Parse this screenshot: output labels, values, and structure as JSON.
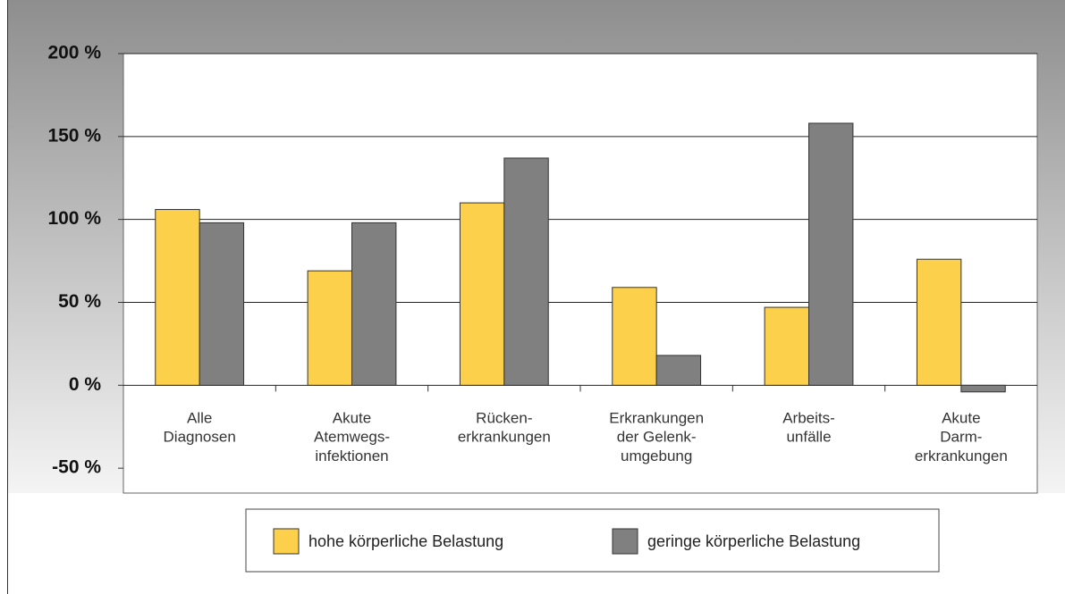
{
  "chart_data": {
    "type": "bar",
    "categories": [
      "Alle\nDiagnosen",
      "Akute\nAtemwegs-\ninfektionen",
      "Rücken-\nerkrankungen",
      "Erkrankungen\nder Gelenk-\numgebung",
      "Arbeits-\nunfälle",
      "Akute\nDarm-\nerkrankungen"
    ],
    "series": [
      {
        "name": "hohe körperliche Belastung",
        "color": "#fcd04a",
        "values": [
          106,
          69,
          110,
          59,
          47,
          76
        ]
      },
      {
        "name": "geringe körperliche Belastung",
        "color": "#808080",
        "values": [
          98,
          98,
          137,
          18,
          158,
          -4
        ]
      }
    ],
    "ylim": [
      -65,
      200
    ],
    "yticks": [
      {
        "value": -50,
        "label": "-50 %"
      },
      {
        "value": 0,
        "label": "0 %"
      },
      {
        "value": 50,
        "label": "50 %"
      },
      {
        "value": 100,
        "label": "100 %"
      },
      {
        "value": 150,
        "label": "150 %"
      },
      {
        "value": 200,
        "label": "200 %"
      }
    ],
    "grid": true
  }
}
